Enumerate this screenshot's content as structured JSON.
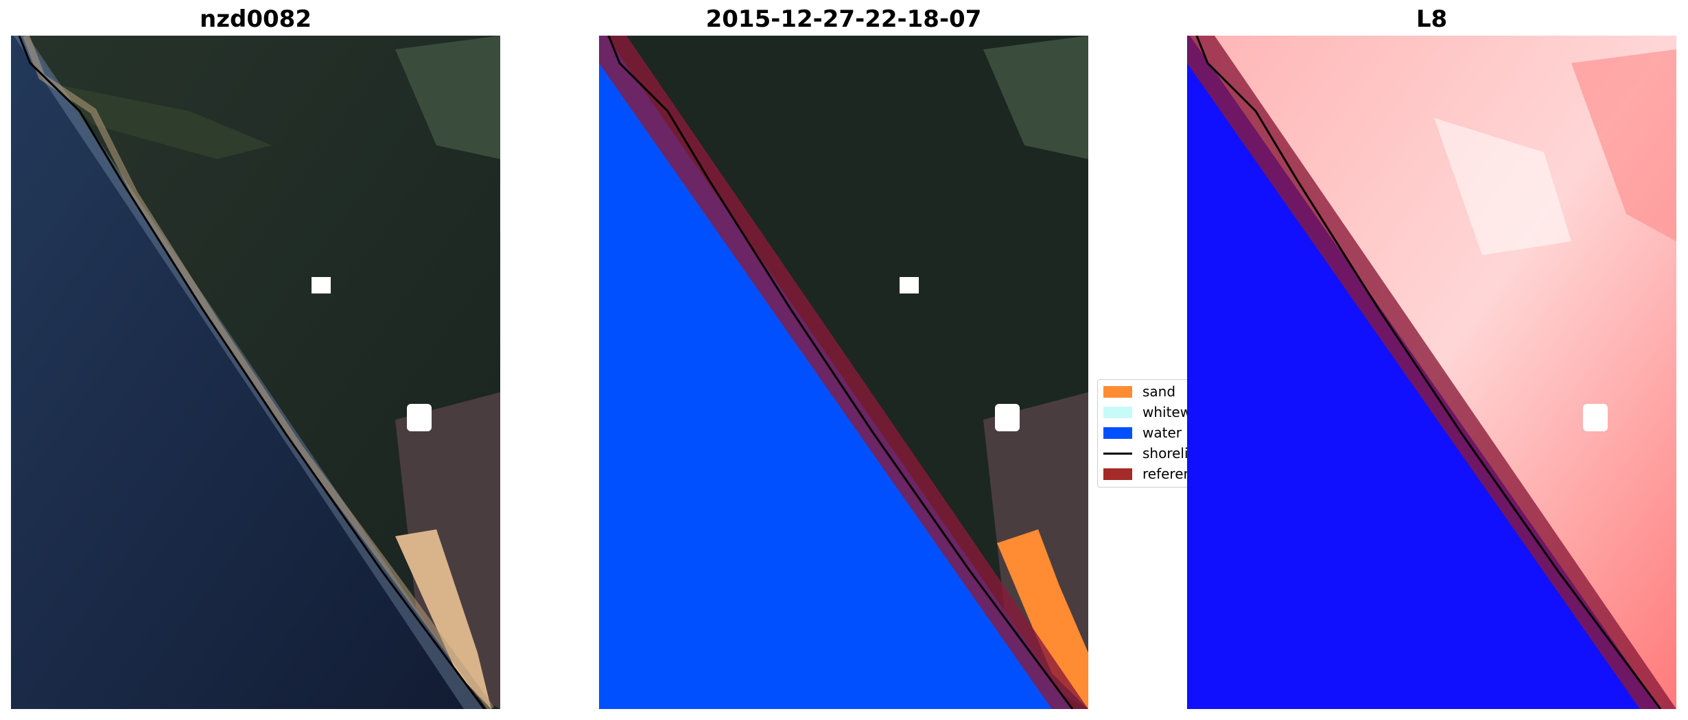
{
  "panels": {
    "left": {
      "title": "nzd0082"
    },
    "middle": {
      "title": "2015-12-27-22-18-07"
    },
    "right": {
      "title": "L8"
    }
  },
  "legend": {
    "items": [
      {
        "label": "sand",
        "color": "#ff8c32",
        "kind": "patch"
      },
      {
        "label": "whitewater",
        "color": "#c8fafa",
        "kind": "patch"
      },
      {
        "label": "water",
        "color": "#0050ff",
        "kind": "patch"
      },
      {
        "label": "shoreline",
        "color": "#000000",
        "kind": "line"
      },
      {
        "label": "reference shoreline",
        "color": "#a52a2a",
        "kind": "patch"
      }
    ]
  },
  "colors": {
    "ocean": "#16223a",
    "land": "#1c2722",
    "water_class": "#0050ff",
    "reference_band": "#8b1a3a",
    "index_water": "#1010ff",
    "index_land": "#ff8080"
  }
}
